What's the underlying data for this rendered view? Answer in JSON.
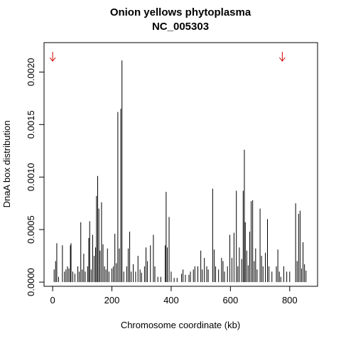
{
  "chart_data": {
    "type": "spike",
    "title": "Onion yellows phytoplasma",
    "subtitle": "NC_005303",
    "x_label": "Chromosome coordinate (kb)",
    "y_label": "DnaA box distribution",
    "color": "#000000",
    "marker_color": "#cc0000",
    "markers_x": [
      0,
      775
    ],
    "xlim": [
      -29,
      894
    ],
    "xticks": [
      0,
      200,
      400,
      600,
      800
    ],
    "ylim": [
      -4e-05,
      0.00228
    ],
    "yticks": [
      {
        "value": 0,
        "label": "0.0000"
      },
      {
        "value": 0.0005,
        "label": "0.0005"
      },
      {
        "value": 0.001,
        "label": "0.0010"
      },
      {
        "value": 0.0015,
        "label": "0.0015"
      },
      {
        "value": 0.002,
        "label": "0.0020"
      }
    ],
    "x": [
      5,
      10,
      14,
      20,
      33,
      40,
      45,
      50,
      55,
      60,
      62,
      68,
      75,
      85,
      90,
      95,
      100,
      105,
      110,
      118,
      122,
      125,
      130,
      135,
      140,
      145,
      148,
      152,
      156,
      160,
      165,
      170,
      175,
      180,
      185,
      190,
      200,
      205,
      210,
      215,
      220,
      225,
      230,
      234,
      240,
      250,
      255,
      260,
      265,
      272,
      280,
      288,
      295,
      300,
      310,
      315,
      320,
      330,
      340,
      345,
      355,
      365,
      380,
      383,
      387,
      393,
      400,
      410,
      420,
      435,
      440,
      448,
      460,
      465,
      475,
      480,
      490,
      500,
      505,
      512,
      520,
      525,
      540,
      545,
      550,
      560,
      570,
      575,
      580,
      590,
      598,
      605,
      612,
      620,
      625,
      630,
      638,
      643,
      647,
      650,
      655,
      660,
      665,
      670,
      675,
      680,
      685,
      690,
      700,
      705,
      710,
      718,
      725,
      730,
      740,
      755,
      760,
      765,
      770,
      780,
      790,
      800,
      820,
      825,
      830,
      835,
      840,
      845,
      850,
      855
    ],
    "values": [
      0.00012,
      0.0002,
      0.00037,
      5e-05,
      0.00035,
      0.0001,
      0.00012,
      0.00015,
      0.00013,
      0.00035,
      0.00037,
      0.0001,
      8e-05,
      0.00015,
      0.0001,
      0.00057,
      0.00012,
      0.00027,
      0.0001,
      0.00015,
      0.00042,
      0.00058,
      0.00012,
      0.00045,
      0.00025,
      0.00033,
      0.00082,
      0.00101,
      0.0007,
      0.0003,
      0.00076,
      0.00036,
      0.00015,
      0.00012,
      0.00032,
      0.0001,
      0.00013,
      0.00015,
      0.00046,
      0.00018,
      0.00162,
      0.00032,
      0.00165,
      0.00211,
      0.0001,
      0.00015,
      0.00032,
      0.00048,
      0.0001,
      0.00017,
      0.0001,
      0.00025,
      0.00012,
      9e-05,
      0.00015,
      0.00033,
      0.0002,
      0.00035,
      0.00045,
      0.00015,
      5e-05,
      5e-05,
      0.00035,
      0.00086,
      0.00033,
      0.00062,
      0.0001,
      4e-05,
      4e-05,
      8e-05,
      0.00012,
      7e-05,
      7e-05,
      0.0001,
      0.00012,
      0.00015,
      0.00015,
      0.0003,
      0.00012,
      0.00023,
      0.00015,
      0.00012,
      0.00089,
      0.00031,
      0.00015,
      0.00012,
      0.00023,
      0.0002,
      0.0001,
      0.00015,
      0.00045,
      0.00023,
      0.00047,
      0.00087,
      0.00015,
      0.00033,
      0.00022,
      0.00087,
      0.00126,
      0.00057,
      0.0003,
      0.00016,
      0.00048,
      0.00077,
      0.00078,
      0.0002,
      0.00032,
      0.00012,
      0.0007,
      0.00025,
      0.00015,
      0.00028,
      0.0006,
      0.00015,
      0.0001,
      0.00015,
      0.00031,
      0.0001,
      5e-05,
      0.00015,
      0.0001,
      0.0001,
      0.00075,
      0.0002,
      0.00065,
      0.00068,
      0.00013,
      0.00038,
      0.00017,
      0.00011
    ]
  }
}
